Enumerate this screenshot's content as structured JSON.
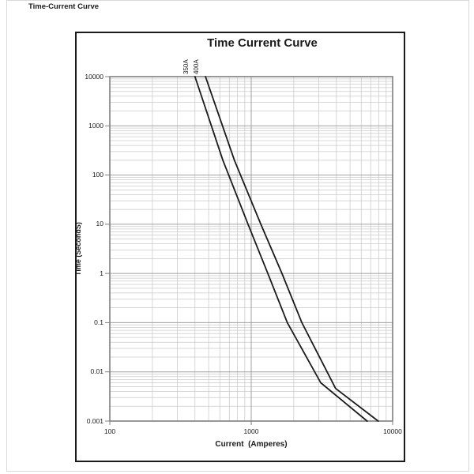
{
  "page": {
    "header": "Time-Current Curve"
  },
  "chart": {
    "title": "Time Current Curve",
    "x_axis": {
      "label": "Current  (Amperes)",
      "ticks": [
        "100",
        "1000",
        "10000"
      ],
      "log_min_exp": 2,
      "log_max_exp": 4
    },
    "y_axis": {
      "label": "Time (SecondS)",
      "ticks": [
        "10000",
        "1000",
        "100",
        "10",
        "1",
        "0.1",
        "0.01",
        "0.001"
      ],
      "log_min_exp": -3,
      "log_max_exp": 4
    },
    "colors": {
      "curve": "#1a1a1a",
      "grid_minor": "#cacaca",
      "grid_major": "#a0a0a0",
      "frame": "#7f7f7f",
      "box_border": "#1a1a1a"
    }
  },
  "chart_data": {
    "type": "line",
    "title": "Time Current Curve",
    "xlabel": "Current (Amperes)",
    "ylabel": "Time (SecondS)",
    "x_scale": "log",
    "y_scale": "log",
    "xlim": [
      100,
      10000
    ],
    "ylim": [
      0.001,
      10000
    ],
    "grid": true,
    "legend_position": "labels-above-plot",
    "series": [
      {
        "name": "350A",
        "points": [
          [
            400,
            10000
          ],
          [
            630,
            200
          ],
          [
            950,
            10
          ],
          [
            1310,
            1
          ],
          [
            1800,
            0.1
          ],
          [
            3100,
            0.006
          ],
          [
            6600,
            0.001
          ]
        ]
      },
      {
        "name": "400A",
        "points": [
          [
            475,
            10000
          ],
          [
            760,
            200
          ],
          [
            1170,
            10
          ],
          [
            1650,
            1
          ],
          [
            2280,
            0.1
          ],
          [
            3950,
            0.0046
          ],
          [
            7900,
            0.001
          ]
        ]
      }
    ]
  }
}
